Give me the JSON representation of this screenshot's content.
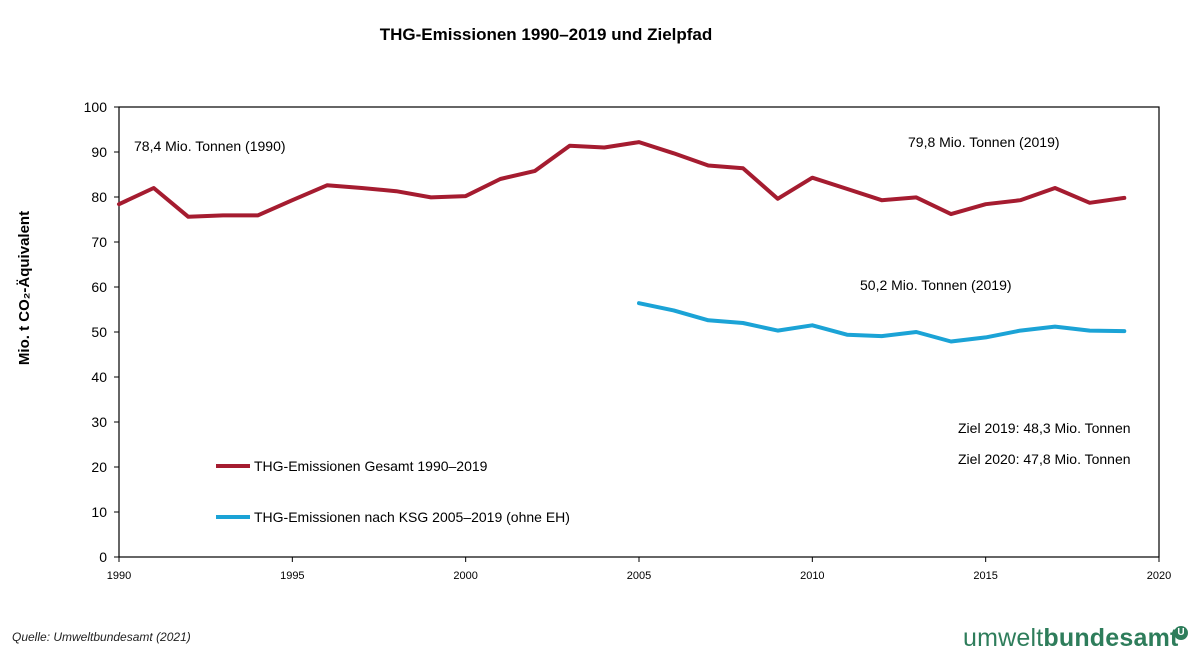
{
  "chart_data": {
    "type": "line",
    "title": "THG-Emissionen 1990–2019 und  Zielpfad",
    "ylabel": "Mio. t CO₂-Äquivalent",
    "xlabel": "",
    "xlim": [
      1990,
      2020
    ],
    "ylim": [
      0,
      100
    ],
    "xticks": [
      1990,
      1995,
      2000,
      2005,
      2010,
      2015,
      2020
    ],
    "yticks": [
      0,
      10,
      20,
      30,
      40,
      50,
      60,
      70,
      80,
      90,
      100
    ],
    "grid": false,
    "legend_position": "lower-left",
    "series": [
      {
        "name": "THG-Emissionen Gesamt 1990–2019",
        "color": "#a51c30",
        "x": [
          1990,
          1991,
          1992,
          1993,
          1994,
          1995,
          1996,
          1997,
          1998,
          1999,
          2000,
          2001,
          2002,
          2003,
          2004,
          2005,
          2006,
          2007,
          2008,
          2009,
          2010,
          2011,
          2012,
          2013,
          2014,
          2015,
          2016,
          2017,
          2018,
          2019
        ],
        "values": [
          78.4,
          82.0,
          75.6,
          75.9,
          75.9,
          79.3,
          82.6,
          82.0,
          81.3,
          79.9,
          80.2,
          84.0,
          85.8,
          91.4,
          91.0,
          92.2,
          89.7,
          87.0,
          86.4,
          79.6,
          84.3,
          81.8,
          79.3,
          79.9,
          76.2,
          78.4,
          79.3,
          82.0,
          78.7,
          79.8
        ]
      },
      {
        "name": "THG-Emissionen nach KSG 2005–2019 (ohne EH)",
        "color": "#1ba3d6",
        "x": [
          2005,
          2006,
          2007,
          2008,
          2009,
          2010,
          2011,
          2012,
          2013,
          2014,
          2015,
          2016,
          2017,
          2018,
          2019
        ],
        "values": [
          56.4,
          54.8,
          52.6,
          52.0,
          50.3,
          51.5,
          49.4,
          49.1,
          50.0,
          47.9,
          48.8,
          50.3,
          51.2,
          50.3,
          50.2
        ]
      }
    ],
    "annotations": [
      {
        "id": "a1990",
        "text": "78,4 Mio. Tonnen (1990)"
      },
      {
        "id": "a2019_total",
        "text": "79,8 Mio. Tonnen (2019)"
      },
      {
        "id": "a2019_ksg",
        "text": "50,2 Mio. Tonnen (2019)"
      },
      {
        "id": "ziel2019",
        "text": "Ziel 2019: 48,3 Mio. Tonnen"
      },
      {
        "id": "ziel2020",
        "text": "Ziel 2020: 47,8 Mio. Tonnen"
      }
    ]
  },
  "footer": {
    "source": "Quelle: Umweltbundesamt (2021)",
    "logo_regular": "umwelt",
    "logo_bold": "bundesamt",
    "logo_badge": "U",
    "logo_color": "#2e7d5b"
  }
}
